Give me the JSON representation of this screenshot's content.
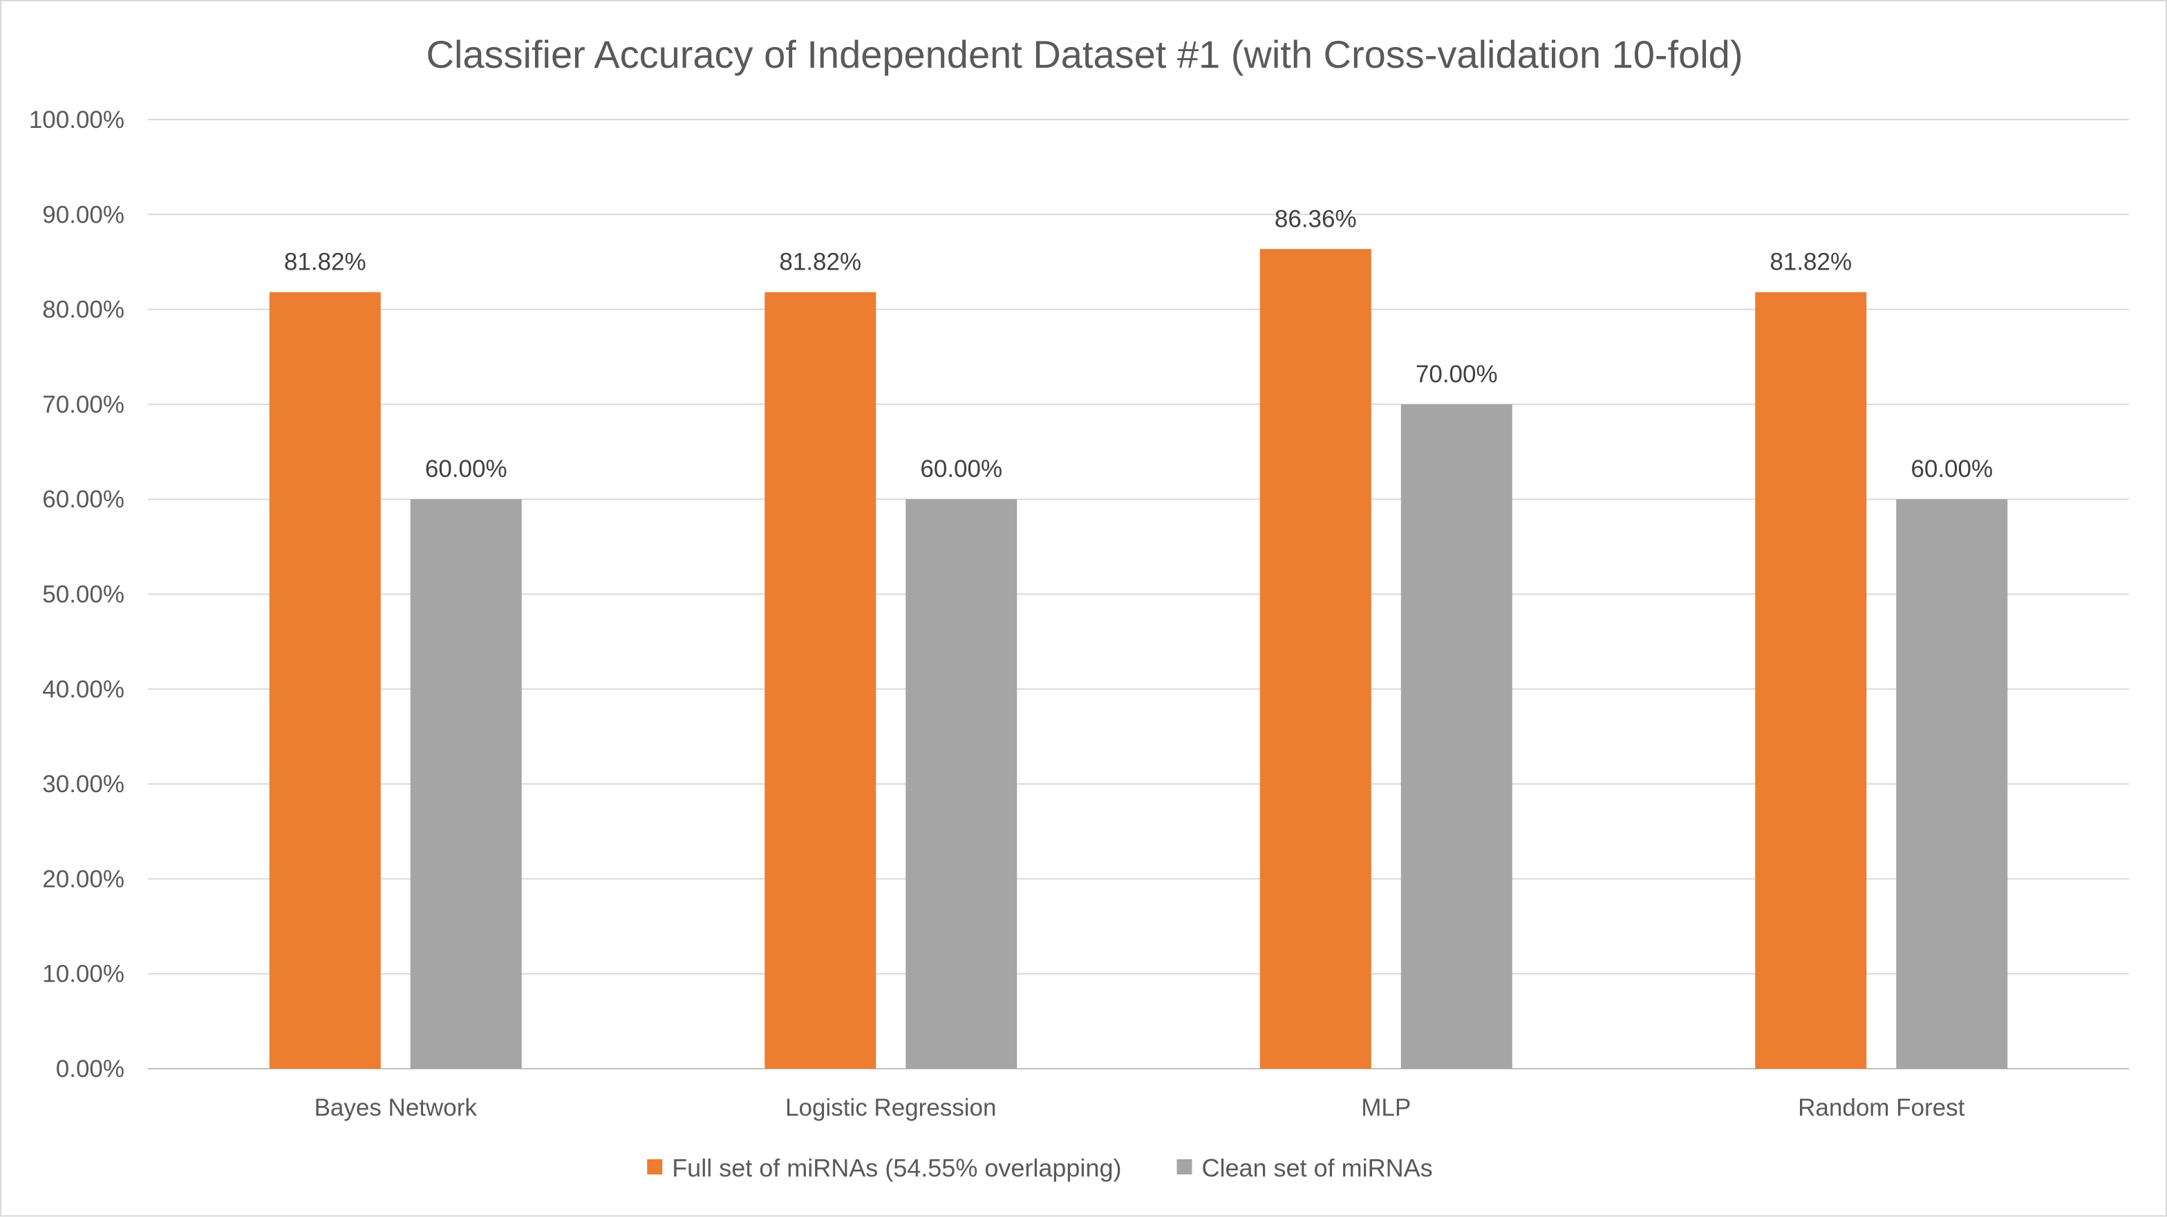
{
  "chart_data": {
    "type": "bar",
    "title": "Classifier Accuracy of Independent Dataset #1 (with Cross-validation 10-fold)",
    "xlabel": "",
    "ylabel": "",
    "categories": [
      "Bayes Network",
      "Logistic Regression",
      "MLP",
      "Random Forest"
    ],
    "series": [
      {
        "name": "Full set of miRNAs (54.55% overlapping)",
        "color": "#ED7D31",
        "values": [
          81.82,
          81.82,
          86.36,
          81.82
        ],
        "labels": [
          "81.82%",
          "81.82%",
          "86.36%",
          "81.82%"
        ]
      },
      {
        "name": "Clean set of miRNAs",
        "color": "#A5A5A5",
        "values": [
          60.0,
          60.0,
          70.0,
          60.0
        ],
        "labels": [
          "60.00%",
          "60.00%",
          "70.00%",
          "60.00%"
        ]
      }
    ],
    "ylim": [
      0,
      100
    ],
    "yticks": [
      0,
      10,
      20,
      30,
      40,
      50,
      60,
      70,
      80,
      90,
      100
    ],
    "ytick_labels": [
      "0.00%",
      "10.00%",
      "20.00%",
      "30.00%",
      "40.00%",
      "50.00%",
      "60.00%",
      "70.00%",
      "80.00%",
      "90.00%",
      "100.00%"
    ],
    "grid": true,
    "legend_position": "bottom",
    "colors": {
      "gridline": "#D9D9D9",
      "text": "#595959",
      "data_label": "#404040",
      "border": "#D9D9D9"
    }
  }
}
